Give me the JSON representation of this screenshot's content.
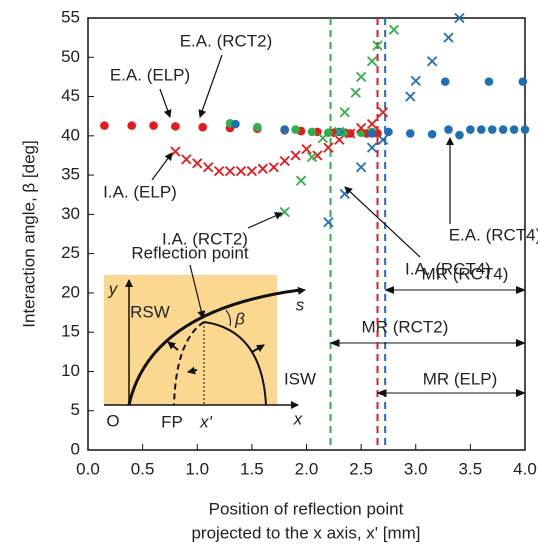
{
  "chart_data": {
    "type": "scatter",
    "xlabel": [
      "Position of reflection point",
      "projected to the x axis, x' [mm]"
    ],
    "ylabel": "Interaction angle, β [deg]",
    "xlim": [
      0,
      4
    ],
    "ylim": [
      0,
      55
    ],
    "xticks": [
      {
        "value": 0,
        "label": "0.0"
      },
      0.5,
      {
        "value": 1,
        "label": "1.0"
      },
      1.5,
      {
        "value": 2,
        "label": "2.0"
      },
      2.5,
      {
        "value": 3,
        "label": "3.0"
      },
      3.5,
      {
        "value": 4,
        "label": "4.0"
      }
    ],
    "yticks": [
      0,
      5,
      10,
      15,
      20,
      25,
      30,
      35,
      40,
      45,
      50,
      55
    ],
    "series": [
      {
        "name": "E.A. (ELP)",
        "color": "#e8181c",
        "marker": "o",
        "x": [
          0.15,
          0.4,
          0.6,
          0.8,
          1.05,
          1.3,
          1.55,
          1.8,
          1.95,
          2.1,
          2.25,
          2.4,
          2.55,
          2.65
        ],
        "values": [
          41.3,
          41.3,
          41.3,
          41.2,
          41.1,
          41.0,
          40.9,
          40.7,
          40.6,
          40.5,
          40.4,
          40.3,
          40.3,
          40.3
        ]
      },
      {
        "name": "E.A. (RCT2)",
        "color": "#2fb04a",
        "marker": "o",
        "x": [
          1.3,
          1.55,
          1.8,
          1.9,
          2.05,
          2.2,
          2.35,
          2.5,
          2.6
        ],
        "values": [
          41.6,
          41.1,
          40.8,
          40.8,
          40.5,
          40.4,
          40.4,
          40.4,
          40.5
        ]
      },
      {
        "name": "E.A. (RCT4)",
        "color": "#1f6fb8",
        "marker": "o",
        "x": [
          1.35,
          1.8,
          2.3,
          2.6,
          2.75,
          2.95,
          3.15,
          3.27,
          3.3,
          3.4,
          3.5,
          3.6,
          3.67,
          3.7,
          3.8,
          3.9,
          3.98,
          4.0
        ],
        "values": [
          41.5,
          40.8,
          40.5,
          40.3,
          40.5,
          40.3,
          40.2,
          46.9,
          40.8,
          40.1,
          40.8,
          40.8,
          46.9,
          40.8,
          40.8,
          40.8,
          46.9,
          40.8
        ]
      },
      {
        "name": "I.A. (ELP)",
        "color": "#e8181c",
        "marker": "x",
        "x": [
          0.8,
          0.9,
          1.0,
          1.1,
          1.2,
          1.3,
          1.4,
          1.5,
          1.6,
          1.7,
          1.8,
          1.9,
          2.0,
          2.1,
          2.2,
          2.3,
          2.4,
          2.5,
          2.6,
          2.7
        ],
        "values": [
          38.0,
          37.0,
          36.5,
          36.0,
          35.5,
          35.5,
          35.5,
          35.5,
          35.8,
          36.0,
          36.8,
          37.5,
          38.3,
          37.5,
          38.5,
          39.5,
          40.3,
          41.0,
          41.5,
          43.0
        ]
      },
      {
        "name": "I.A. (RCT2)",
        "color": "#2fb04a",
        "marker": "x",
        "x": [
          1.8,
          1.95,
          2.05,
          2.15,
          2.3,
          2.35,
          2.45,
          2.5,
          2.6,
          2.65,
          2.8
        ],
        "values": [
          30.3,
          34.3,
          37.3,
          39.7,
          40.5,
          43.0,
          45.5,
          47.5,
          49.5,
          51.5,
          53.5
        ]
      },
      {
        "name": "I.A. (RCT4)",
        "color": "#1f6fb8",
        "marker": "x",
        "x": [
          2.2,
          2.35,
          2.5,
          2.6,
          2.7,
          2.95,
          3.0,
          3.15,
          3.3,
          3.4
        ],
        "values": [
          29.0,
          32.6,
          36.0,
          38.5,
          39.5,
          45.0,
          47.0,
          49.5,
          52.5,
          55.0
        ]
      }
    ],
    "annotations": [
      {
        "text": "E.A. (RCT2)",
        "color": "#2fb04a"
      },
      {
        "text": "E.A. (ELP)",
        "color": "#e8181c"
      },
      {
        "text": "I.A. (ELP)",
        "color": "#e8181c"
      },
      {
        "text": "I.A. (RCT2)",
        "color": "#2fb04a"
      },
      {
        "text": "E.A. (RCT4)",
        "color": "#1f6fb8"
      },
      {
        "text": "I.A. (RCT4)",
        "color": "#1f6fb8"
      }
    ],
    "ranges": [
      {
        "name": "MR (RCT4)",
        "color": "#1f6fb8",
        "start": 2.72
      },
      {
        "name": "MR (RCT2)",
        "color": "#2fb04a",
        "start": 2.22
      },
      {
        "name": "MR (ELP)",
        "color": "#e8181c",
        "start": 2.65
      }
    ],
    "inset": {
      "labels": [
        "Reflection point",
        "RSW",
        "ISW",
        "y",
        "s",
        "x",
        "β",
        "O",
        "FP",
        "x'"
      ]
    }
  }
}
